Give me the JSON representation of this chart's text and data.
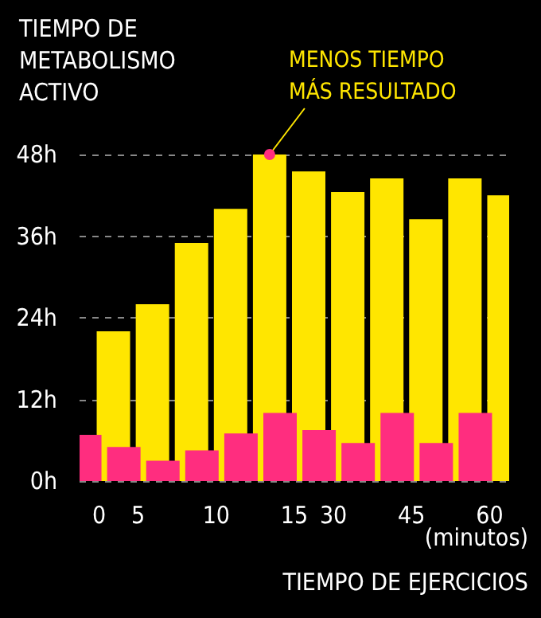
{
  "chart_data": {
    "type": "bar",
    "title": "TIEMPO DE\nMETABOLISMO\nACTIVO",
    "xlabel": "TIEMPO DE EJERCICIOS",
    "categories": [
      "0",
      "5",
      null,
      "10",
      null,
      "15",
      "30",
      null,
      "45",
      null,
      "60"
    ],
    "series": [
      {
        "color": "#ff2d7f",
        "values": [
          6.8,
          5,
          3,
          4.5,
          7,
          10,
          7.5,
          5.6,
          10,
          5.6,
          10
        ]
      },
      {
        "color": "#ffe600",
        "values": [
          22,
          26,
          35,
          40,
          48,
          45.5,
          42.5,
          44.5,
          38.5,
          44.5,
          42
        ]
      }
    ],
    "ylim": [
      0,
      48
    ],
    "yticks": [
      {
        "value": 0,
        "label": "0h"
      },
      {
        "value": 12,
        "label": "12h"
      },
      {
        "value": 24,
        "label": "24h"
      },
      {
        "value": 36,
        "label": "36h"
      },
      {
        "value": 48,
        "label": "48h"
      }
    ],
    "grid": "y",
    "annotations": [
      "MENOS TIEMPO\nMÁS RESULTADO",
      "(minutos)"
    ]
  }
}
